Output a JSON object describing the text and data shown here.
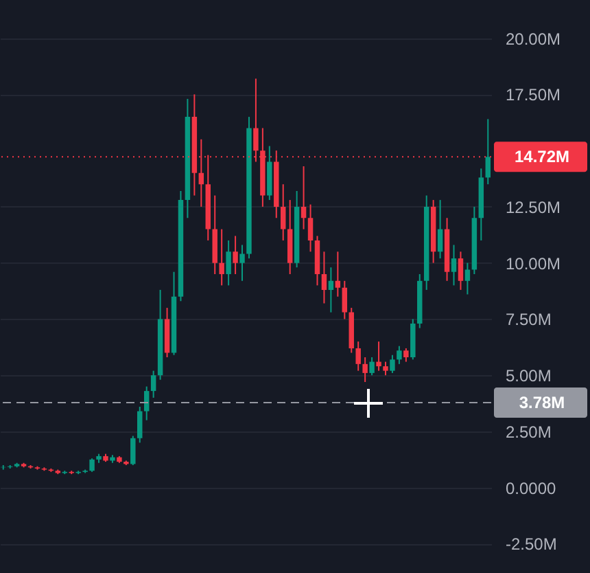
{
  "chart_data": {
    "type": "candlestick",
    "categories": [
      null,
      null,
      null,
      null,
      null,
      null,
      null,
      null,
      null,
      null,
      null,
      null,
      null,
      null,
      null,
      null,
      null,
      null,
      null,
      null,
      null,
      null,
      null,
      null,
      null,
      null,
      null,
      null,
      null,
      null,
      null,
      null,
      null,
      null,
      null,
      null,
      null,
      null,
      null,
      null,
      null,
      null,
      null,
      null,
      null,
      null,
      null,
      null,
      null,
      null,
      null,
      null,
      null,
      null,
      null,
      null,
      null,
      null,
      null,
      null,
      null,
      null,
      null,
      null,
      null,
      null,
      null,
      null,
      null,
      null,
      null,
      null
    ],
    "ohlc": [
      [
        0.9,
        1.0,
        0.8,
        0.92
      ],
      [
        0.92,
        1.0,
        0.85,
        0.95
      ],
      [
        0.95,
        1.1,
        0.9,
        1.05
      ],
      [
        1.05,
        1.1,
        0.9,
        0.95
      ],
      [
        0.95,
        1.0,
        0.85,
        0.9
      ],
      [
        0.9,
        0.95,
        0.8,
        0.85
      ],
      [
        0.85,
        0.9,
        0.75,
        0.8
      ],
      [
        0.8,
        0.85,
        0.7,
        0.75
      ],
      [
        0.75,
        0.8,
        0.6,
        0.65
      ],
      [
        0.65,
        0.75,
        0.6,
        0.7
      ],
      [
        0.7,
        0.75,
        0.6,
        0.65
      ],
      [
        0.65,
        0.75,
        0.6,
        0.7
      ],
      [
        0.7,
        0.8,
        0.65,
        0.75
      ],
      [
        0.75,
        1.3,
        0.7,
        1.25
      ],
      [
        1.25,
        1.5,
        1.1,
        1.4
      ],
      [
        1.4,
        1.5,
        1.15,
        1.2
      ],
      [
        1.2,
        1.45,
        1.1,
        1.35
      ],
      [
        1.35,
        1.4,
        1.1,
        1.15
      ],
      [
        1.15,
        1.2,
        1.0,
        1.05
      ],
      [
        1.05,
        2.3,
        1.0,
        2.2
      ],
      [
        2.2,
        3.6,
        2.0,
        3.4
      ],
      [
        3.4,
        4.5,
        3.0,
        4.3
      ],
      [
        4.3,
        5.2,
        4.0,
        5.0
      ],
      [
        5.0,
        8.8,
        4.8,
        7.5
      ],
      [
        7.5,
        8.0,
        5.8,
        6.0
      ],
      [
        6.0,
        9.6,
        5.9,
        8.5
      ],
      [
        8.5,
        13.2,
        8.3,
        12.8
      ],
      [
        12.8,
        17.3,
        12.0,
        16.5
      ],
      [
        16.5,
        17.5,
        13.0,
        14.0
      ],
      [
        14.0,
        15.5,
        12.5,
        13.5
      ],
      [
        13.5,
        14.8,
        11.0,
        11.5
      ],
      [
        11.5,
        13.0,
        9.5,
        10.0
      ],
      [
        10.0,
        11.5,
        9.0,
        9.5
      ],
      [
        9.5,
        11.0,
        9.0,
        10.5
      ],
      [
        10.5,
        11.2,
        9.5,
        10.0
      ],
      [
        10.0,
        10.8,
        9.2,
        10.4
      ],
      [
        10.4,
        16.5,
        10.2,
        16.0
      ],
      [
        16.0,
        18.2,
        14.5,
        15.0
      ],
      [
        15.0,
        16.0,
        12.5,
        13.0
      ],
      [
        13.0,
        15.2,
        12.8,
        14.5
      ],
      [
        14.5,
        15.0,
        12.0,
        12.5
      ],
      [
        12.5,
        13.5,
        11.0,
        11.5
      ],
      [
        11.5,
        12.8,
        9.5,
        10.0
      ],
      [
        10.0,
        13.2,
        9.8,
        12.5
      ],
      [
        12.5,
        14.3,
        11.5,
        12.0
      ],
      [
        12.0,
        12.6,
        10.5,
        11.0
      ],
      [
        11.0,
        11.2,
        9.0,
        9.5
      ],
      [
        9.5,
        10.5,
        8.2,
        8.8
      ],
      [
        8.8,
        9.8,
        7.8,
        9.2
      ],
      [
        9.2,
        10.5,
        8.5,
        8.9
      ],
      [
        8.9,
        9.2,
        7.5,
        7.8
      ],
      [
        7.8,
        8.0,
        6.0,
        6.2
      ],
      [
        6.2,
        6.5,
        5.2,
        5.5
      ],
      [
        5.5,
        5.8,
        4.7,
        5.1
      ],
      [
        5.1,
        5.8,
        5.0,
        5.6
      ],
      [
        5.6,
        6.5,
        5.2,
        5.4
      ],
      [
        5.4,
        5.6,
        5.0,
        5.2
      ],
      [
        5.2,
        5.9,
        5.1,
        5.7
      ],
      [
        5.7,
        6.3,
        5.5,
        6.1
      ],
      [
        6.1,
        6.2,
        5.6,
        5.8
      ],
      [
        5.8,
        7.5,
        5.7,
        7.3
      ],
      [
        7.3,
        9.5,
        7.1,
        9.2
      ],
      [
        9.2,
        13.0,
        8.8,
        12.5
      ],
      [
        12.5,
        12.8,
        10.0,
        10.5
      ],
      [
        10.5,
        12.8,
        10.2,
        11.5
      ],
      [
        11.5,
        12.0,
        9.2,
        9.6
      ],
      [
        9.6,
        10.8,
        9.0,
        10.2
      ],
      [
        10.2,
        10.5,
        8.8,
        9.2
      ],
      [
        9.2,
        10.0,
        8.6,
        9.7
      ],
      [
        9.7,
        12.5,
        9.5,
        12.0
      ],
      [
        12.0,
        14.2,
        11.0,
        13.8
      ],
      [
        13.8,
        16.4,
        13.5,
        14.72
      ]
    ],
    "colors": [
      "#089981",
      "#089981",
      "#089981",
      "#f23645",
      "#f23645",
      "#f23645",
      "#f23645",
      "#f23645",
      "#f23645",
      "#089981",
      "#f23645",
      "#089981",
      "#089981",
      "#089981",
      "#089981",
      "#f23645",
      "#089981",
      "#f23645",
      "#f23645",
      "#089981",
      "#089981",
      "#089981",
      "#089981",
      "#089981",
      "#f23645",
      "#089981",
      "#089981",
      "#089981",
      "#f23645",
      "#f23645",
      "#f23645",
      "#f23645",
      "#f23645",
      "#089981",
      "#f23645",
      "#089981",
      "#089981",
      "#f23645",
      "#f23645",
      "#089981",
      "#f23645",
      "#f23645",
      "#f23645",
      "#089981",
      "#f23645",
      "#f23645",
      "#f23645",
      "#f23645",
      "#089981",
      "#f23645",
      "#f23645",
      "#f23645",
      "#f23645",
      "#f23645",
      "#089981",
      "#f23645",
      "#f23645",
      "#089981",
      "#089981",
      "#f23645",
      "#089981",
      "#089981",
      "#089981",
      "#f23645",
      "#089981",
      "#f23645",
      "#089981",
      "#f23645",
      "#089981",
      "#089981",
      "#089981",
      "#089981"
    ],
    "ylim": [
      -3.8,
      21.7
    ],
    "yticks": [
      {
        "value": -2.5,
        "label": "-2.50M"
      },
      {
        "value": 0,
        "label": "0.0000"
      },
      {
        "value": 2.5,
        "label": "2.50M"
      },
      {
        "value": 5,
        "label": "5.00M"
      },
      {
        "value": 7.5,
        "label": "7.50M"
      },
      {
        "value": 10,
        "label": "10.00M"
      },
      {
        "value": 12.5,
        "label": "12.50M"
      },
      {
        "value": 17.5,
        "label": "17.50M"
      },
      {
        "value": 20,
        "label": "20.00M"
      }
    ],
    "ref_lines": [
      {
        "axis": "y",
        "value": 14.72,
        "label": "14.72M",
        "color": "#f23645",
        "line_style": "dotted"
      },
      {
        "axis": "y",
        "value": 3.78,
        "label": "3.78M",
        "color": "#9598a1",
        "line_style": "dashed"
      }
    ],
    "grid": "y",
    "tick_labels": "y"
  }
}
